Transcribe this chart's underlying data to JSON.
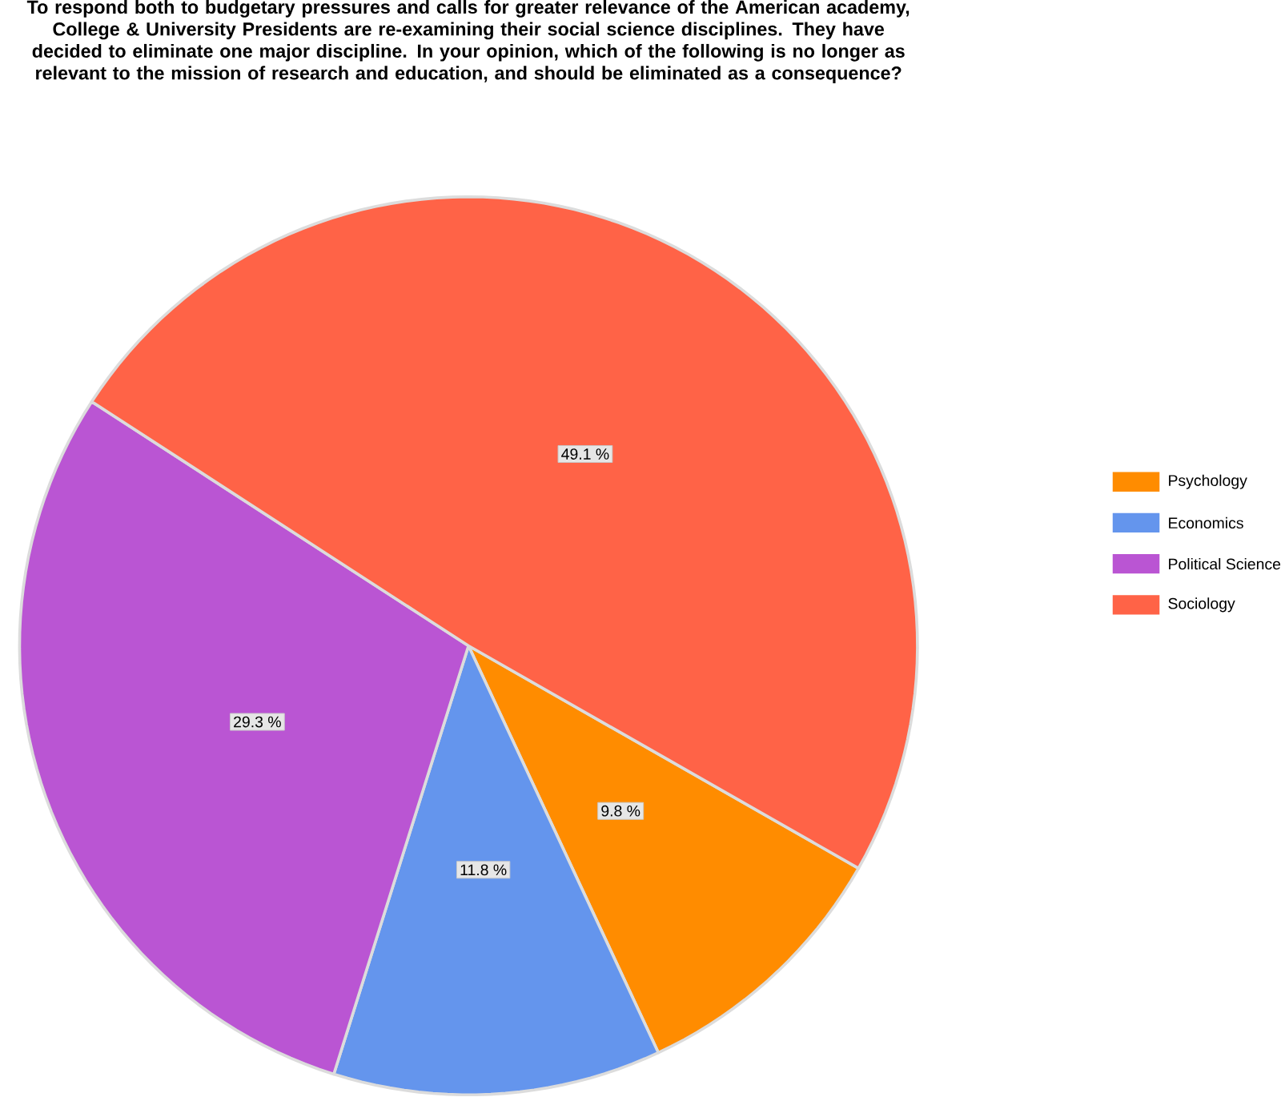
{
  "chart_data": {
    "type": "pie",
    "title": "To respond both to budgetary pressures and calls for greater relevance of the American academy, College & University Presidents are re-examining their social science disciplines. They have decided to eliminate one major discipline. In your opinion, which of the following is no longer as relevant to the mission of research and education, and should be eliminated as a consequence?",
    "categories": [
      "Psychology",
      "Economics",
      "Political Science",
      "Sociology"
    ],
    "values": [
      9.8,
      11.8,
      29.3,
      49.1
    ],
    "colors": [
      "#ff8c00",
      "#6495ed",
      "#ba55d3",
      "#ff6347"
    ],
    "value_labels": [
      "9.8 %",
      "11.8 %",
      "29.3 %",
      "49.1 %"
    ],
    "legend": "right"
  }
}
